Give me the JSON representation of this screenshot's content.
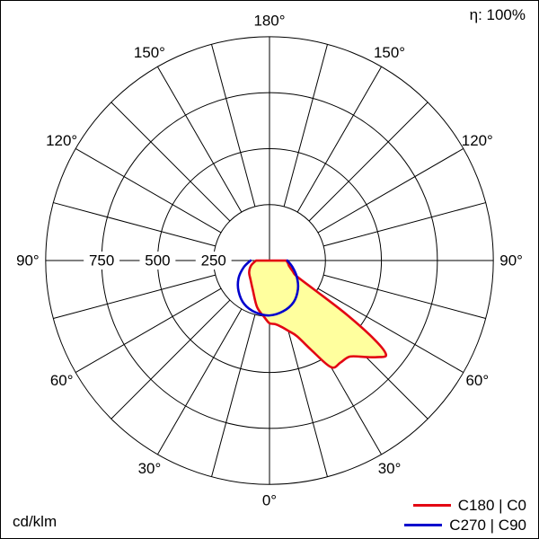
{
  "meta": {
    "unit_label": "cd/klm",
    "efficiency_label": "η: 100%"
  },
  "legend": {
    "items": [
      {
        "label": "C180 | C0",
        "color": "#e30613"
      },
      {
        "label": "C270 | C90",
        "color": "#0000cd"
      }
    ]
  },
  "chart_data": {
    "type": "polar",
    "subtype": "luminous-intensity-distribution",
    "unit": "cd/klm",
    "efficiency": "100%",
    "radial_axis": {
      "max": 1000,
      "ring_step": 250,
      "ticks": [
        {
          "value": 750,
          "label": "750"
        },
        {
          "value": 500,
          "label": "500"
        },
        {
          "value": 250,
          "label": "250"
        }
      ]
    },
    "angular_axis": {
      "zero_position": "bottom",
      "spoke_step_deg": 15,
      "label_step_deg": 30,
      "labels": [
        "0°",
        "30°",
        "60°",
        "90°",
        "120°",
        "150°",
        "180°"
      ],
      "mirrored": true
    },
    "series": [
      {
        "name": "C180 | C0",
        "color": "#e30613",
        "fill": "#ffff9e",
        "points": [
          [
            -90,
            60
          ],
          [
            -75,
            85
          ],
          [
            -60,
            105
          ],
          [
            -45,
            120
          ],
          [
            -30,
            150
          ],
          [
            -15,
            215
          ],
          [
            -5,
            255
          ],
          [
            0,
            280
          ],
          [
            5,
            285
          ],
          [
            10,
            300
          ],
          [
            15,
            325
          ],
          [
            20,
            360
          ],
          [
            25,
            440
          ],
          [
            30,
            550
          ],
          [
            35,
            555
          ],
          [
            40,
            560
          ],
          [
            45,
            610
          ],
          [
            48,
            645
          ],
          [
            51,
            670
          ],
          [
            53,
            590
          ],
          [
            55,
            420
          ],
          [
            57,
            240
          ],
          [
            60,
            140
          ],
          [
            65,
            115
          ],
          [
            70,
            100
          ],
          [
            75,
            90
          ],
          [
            80,
            85
          ],
          [
            85,
            80
          ],
          [
            90,
            75
          ]
        ]
      },
      {
        "name": "C270 | C90",
        "color": "#0000cd",
        "fill": "none",
        "points": [
          [
            -90,
            85
          ],
          [
            -75,
            120
          ],
          [
            -60,
            160
          ],
          [
            -45,
            195
          ],
          [
            -30,
            225
          ],
          [
            -15,
            240
          ],
          [
            0,
            245
          ],
          [
            15,
            235
          ],
          [
            30,
            215
          ],
          [
            45,
            180
          ],
          [
            60,
            140
          ],
          [
            75,
            105
          ],
          [
            90,
            80
          ]
        ]
      }
    ]
  }
}
